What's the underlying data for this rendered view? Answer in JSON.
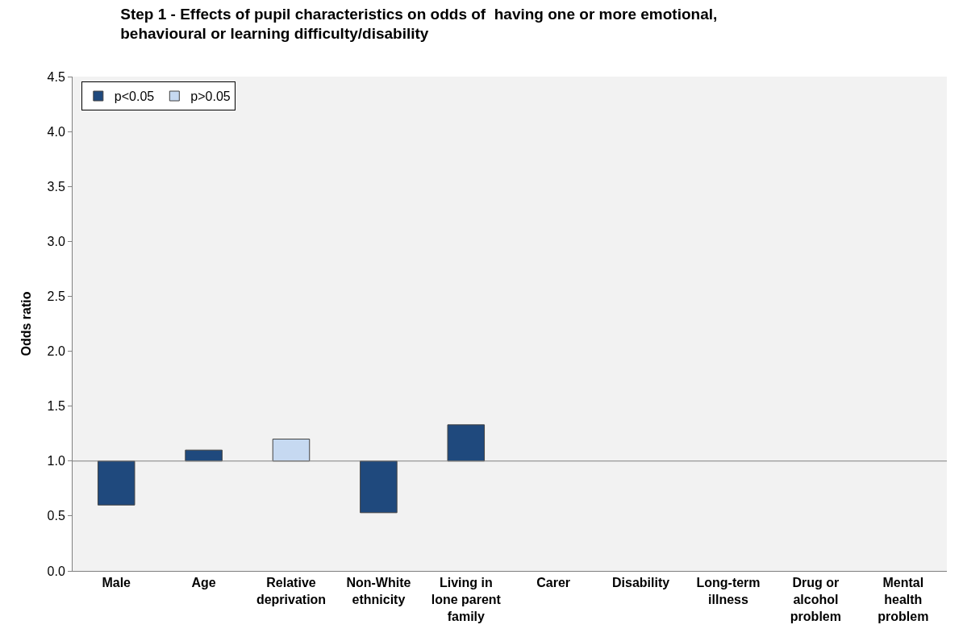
{
  "chart_data": {
    "type": "bar",
    "title": "Step 1 - Effects of pupil characteristics on odds of  having one or more emotional, behavioural or learning difficulty/disability",
    "ylabel": "Odds ratio",
    "categories": [
      "Male",
      "Age",
      "Relative deprivation",
      "Non-White ethnicity",
      "Living in lone parent family",
      "Carer",
      "Disability",
      "Long-term illness",
      "Drug or alcohol problem",
      "Mental health problem"
    ],
    "series": [
      {
        "name": "p<0.05",
        "color": "#1f497d",
        "values": [
          -0.4,
          0.1,
          null,
          -0.47,
          0.33,
          null,
          null,
          null,
          null,
          null
        ],
        "base": [
          1,
          1,
          null,
          1,
          1,
          null,
          null,
          null,
          null,
          null
        ]
      },
      {
        "name": "p>0.05",
        "color": "#c6d9f1",
        "values": [
          null,
          null,
          0.2,
          null,
          null,
          null,
          null,
          null,
          null,
          null
        ],
        "base": [
          null,
          null,
          1,
          null,
          null,
          null,
          null,
          null,
          null,
          null
        ]
      }
    ],
    "ylim": [
      0,
      4.5
    ],
    "yticks": [
      {
        "value": 0,
        "label": "0.0"
      },
      0.5,
      {
        "value": 1,
        "label": "1.0"
      },
      1.5,
      {
        "value": 2,
        "label": "2.0"
      },
      2.5,
      {
        "value": 3,
        "label": "3.0"
      },
      3.5,
      {
        "value": 4,
        "label": "4.0"
      },
      4.5
    ],
    "ref_lines": [
      {
        "axis": "y",
        "value": 1,
        "color": "#808080"
      }
    ],
    "grid": false,
    "legend": "top left"
  }
}
